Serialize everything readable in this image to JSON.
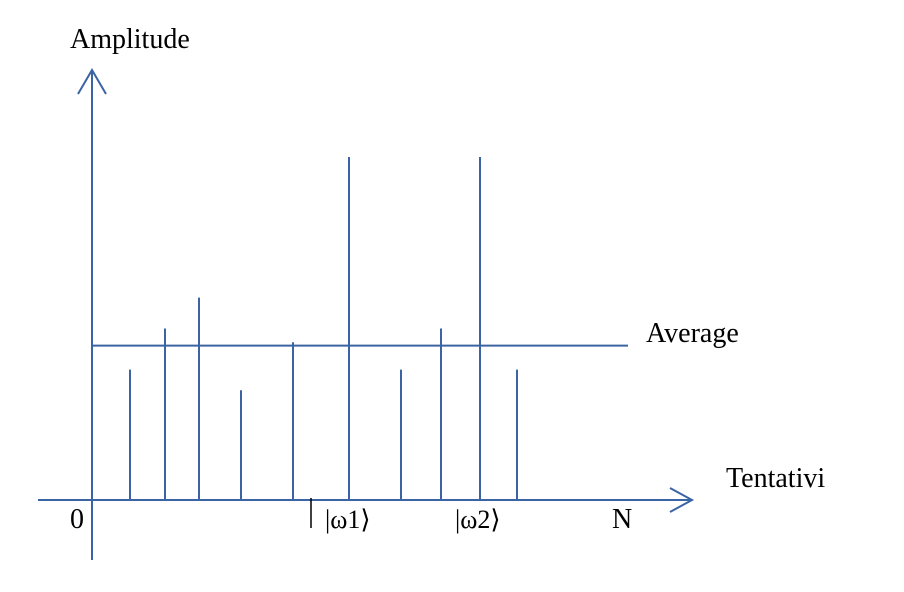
{
  "diagram": {
    "y_axis_label": "Amplitude",
    "x_axis_label": "Tentativi",
    "average_label": "Average",
    "origin_label": "0",
    "end_label": "N",
    "marked_states": [
      {
        "label": "|ω1⟩"
      },
      {
        "label": "|ω2⟩"
      }
    ],
    "line_color": "#3a64a3",
    "text_color": "#000000",
    "average_level": 0.45,
    "spikes": [
      0.38,
      0.5,
      0.59,
      0.32,
      0.46,
      1.0,
      0.38,
      0.5,
      1.0,
      0.38
    ]
  }
}
